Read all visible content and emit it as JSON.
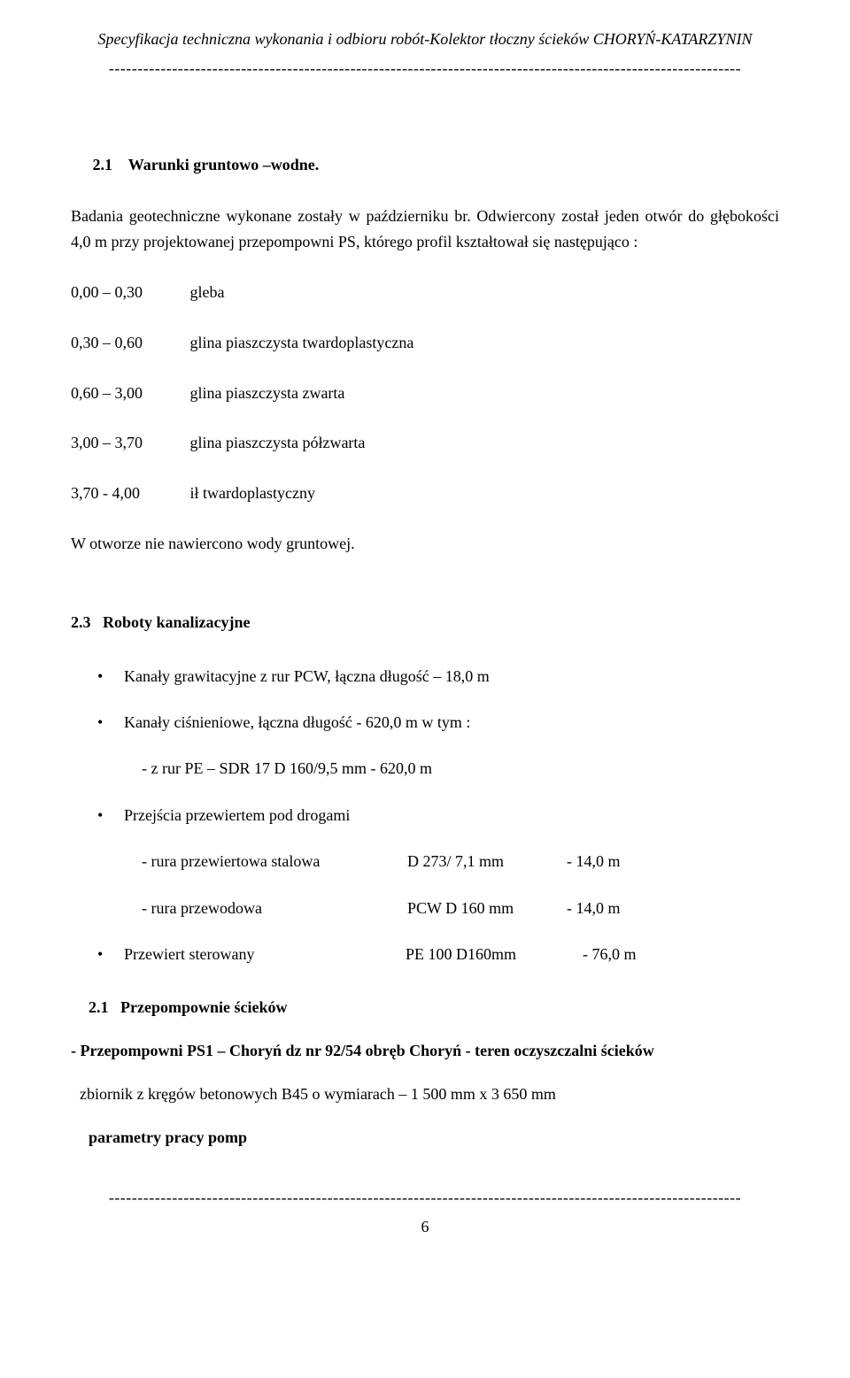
{
  "header": {
    "title": "Specyfikacja techniczna wykonania i odbioru robót-Kolektor tłoczny ścieków CHORYŃ-KATARZYNIN",
    "divider": "--------------------------------------------------------------------------------------------------------------"
  },
  "section_2_1": {
    "number": "2.1",
    "title": "Warunki gruntowo –wodne.",
    "intro": "Badania geotechniczne wykonane zostały w październiku br. Odwiercony został jeden otwór do głębokości 4,0 m przy projektowanej przepompowni PS, którego profil kształtował się następująco :",
    "depths": [
      {
        "range": "0,00 – 0,30",
        "desc": "gleba"
      },
      {
        "range": "0,30 – 0,60",
        "desc": "glina piaszczysta twardoplastyczna"
      },
      {
        "range": "0,60 – 3,00",
        "desc": "glina piaszczysta zwarta"
      },
      {
        "range": "3,00 – 3,70",
        "desc": "glina piaszczysta półzwarta"
      },
      {
        "range": "3,70 -  4,00",
        "desc": "ił twardoplastyczny"
      }
    ],
    "outro": "W otworze nie nawiercono wody gruntowej."
  },
  "section_2_3": {
    "number": "2.3",
    "title": "Roboty kanalizacyjne",
    "bullets": {
      "b1": "Kanały grawitacyjne z rur PCW, łączna długość   –       18,0 m",
      "b2": "Kanały ciśnieniowe, łączna długość       -             620,0 m  w tym :",
      "b2_sub": "- z rur PE – SDR 17 D 160/9,5 mm   -            620,0 m",
      "b3": "Przejścia przewiertem pod drogami",
      "b3_sub1_c1": "- rura przewiertowa stalowa",
      "b3_sub1_c2": "D 273/ 7,1 mm",
      "b3_sub1_c3": "-  14,0 m",
      "b3_sub2_c1": "- rura przewodowa",
      "b3_sub2_c2": "PCW D 160  mm",
      "b3_sub2_c3": "-  14,0 m",
      "b4_c1": "Przewiert sterowany",
      "b4_c2": "PE 100  D160mm",
      "b4_c3": "- 76,0 m"
    }
  },
  "pump": {
    "heading_num": "2.1",
    "heading_title": "Przepompownie ścieków",
    "line1": "- Przepompowni  PS1 – Choryń  dz nr  92/54  obręb Choryń  - teren oczyszczalni ścieków",
    "line2": "zbiornik z kręgów betonowych B45 o wymiarach – 1 500   mm x 3 650 mm",
    "params": "parametry pracy pomp"
  },
  "footer": {
    "divider": "--------------------------------------------------------------------------------------------------------------",
    "page": "6"
  }
}
